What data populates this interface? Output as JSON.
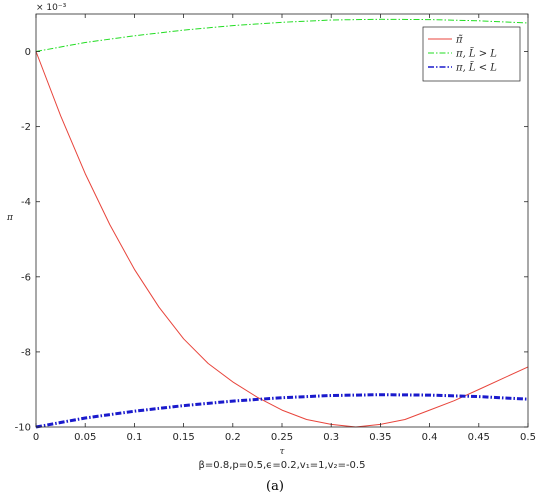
{
  "chart_data": {
    "type": "line",
    "title": "",
    "xlabel": "τ",
    "ylabel": "π",
    "y_exponent_label": "× 10⁻³",
    "xlim": [
      0,
      0.5
    ],
    "ylim": [
      -10,
      1
    ],
    "xticks": [
      0,
      0.05,
      0.1,
      0.15,
      0.2,
      0.25,
      0.3,
      0.35,
      0.4,
      0.45,
      0.5
    ],
    "xtick_labels": [
      "0",
      "0.05",
      "0.1",
      "0.15",
      "0.2",
      "0.25",
      "0.3",
      "0.35",
      "0.4",
      "0.45",
      "0.5"
    ],
    "yticks": [
      -10,
      -8,
      -6,
      -4,
      -2,
      0
    ],
    "ytick_labels": [
      "-10",
      "-8",
      "-6",
      "-4",
      "-2",
      "0"
    ],
    "grid": false,
    "legend_position": "top-right",
    "series": [
      {
        "name": "π̃",
        "color": "#e8453c",
        "dash": "solid",
        "width": 1,
        "x": [
          0,
          0.025,
          0.05,
          0.075,
          0.1,
          0.125,
          0.15,
          0.175,
          0.2,
          0.225,
          0.25,
          0.275,
          0.3,
          0.325,
          0.35,
          0.375,
          0.4,
          0.425,
          0.45,
          0.475,
          0.5
        ],
        "y": [
          0,
          -1.71,
          -3.25,
          -4.61,
          -5.8,
          -6.81,
          -7.65,
          -8.31,
          -8.8,
          -9.21,
          -9.55,
          -9.8,
          -9.93,
          -10.0,
          -9.93,
          -9.8,
          -9.55,
          -9.3,
          -9.0,
          -8.7,
          -8.4
        ]
      },
      {
        "name": "π, L̃ > L",
        "color": "#22dd22",
        "dash": "dashdot",
        "width": 1,
        "x": [
          0,
          0.05,
          0.1,
          0.15,
          0.2,
          0.25,
          0.3,
          0.35,
          0.4,
          0.45,
          0.5
        ],
        "y": [
          0,
          0.24,
          0.42,
          0.57,
          0.69,
          0.78,
          0.84,
          0.86,
          0.85,
          0.82,
          0.76
        ]
      },
      {
        "name": "π, L̃ < L",
        "color": "#1a1acc",
        "dash": "dashdot",
        "width": 3,
        "x": [
          0,
          0.05,
          0.1,
          0.15,
          0.2,
          0.25,
          0.3,
          0.35,
          0.4,
          0.45,
          0.5
        ],
        "y": [
          -10,
          -9.76,
          -9.58,
          -9.43,
          -9.31,
          -9.22,
          -9.16,
          -9.14,
          -9.15,
          -9.19,
          -9.26
        ]
      }
    ],
    "annotation": "β=0.8,p=0.5,ϵ=0.2,v₁=1,v₂=-0.5",
    "caption": "(a)"
  }
}
